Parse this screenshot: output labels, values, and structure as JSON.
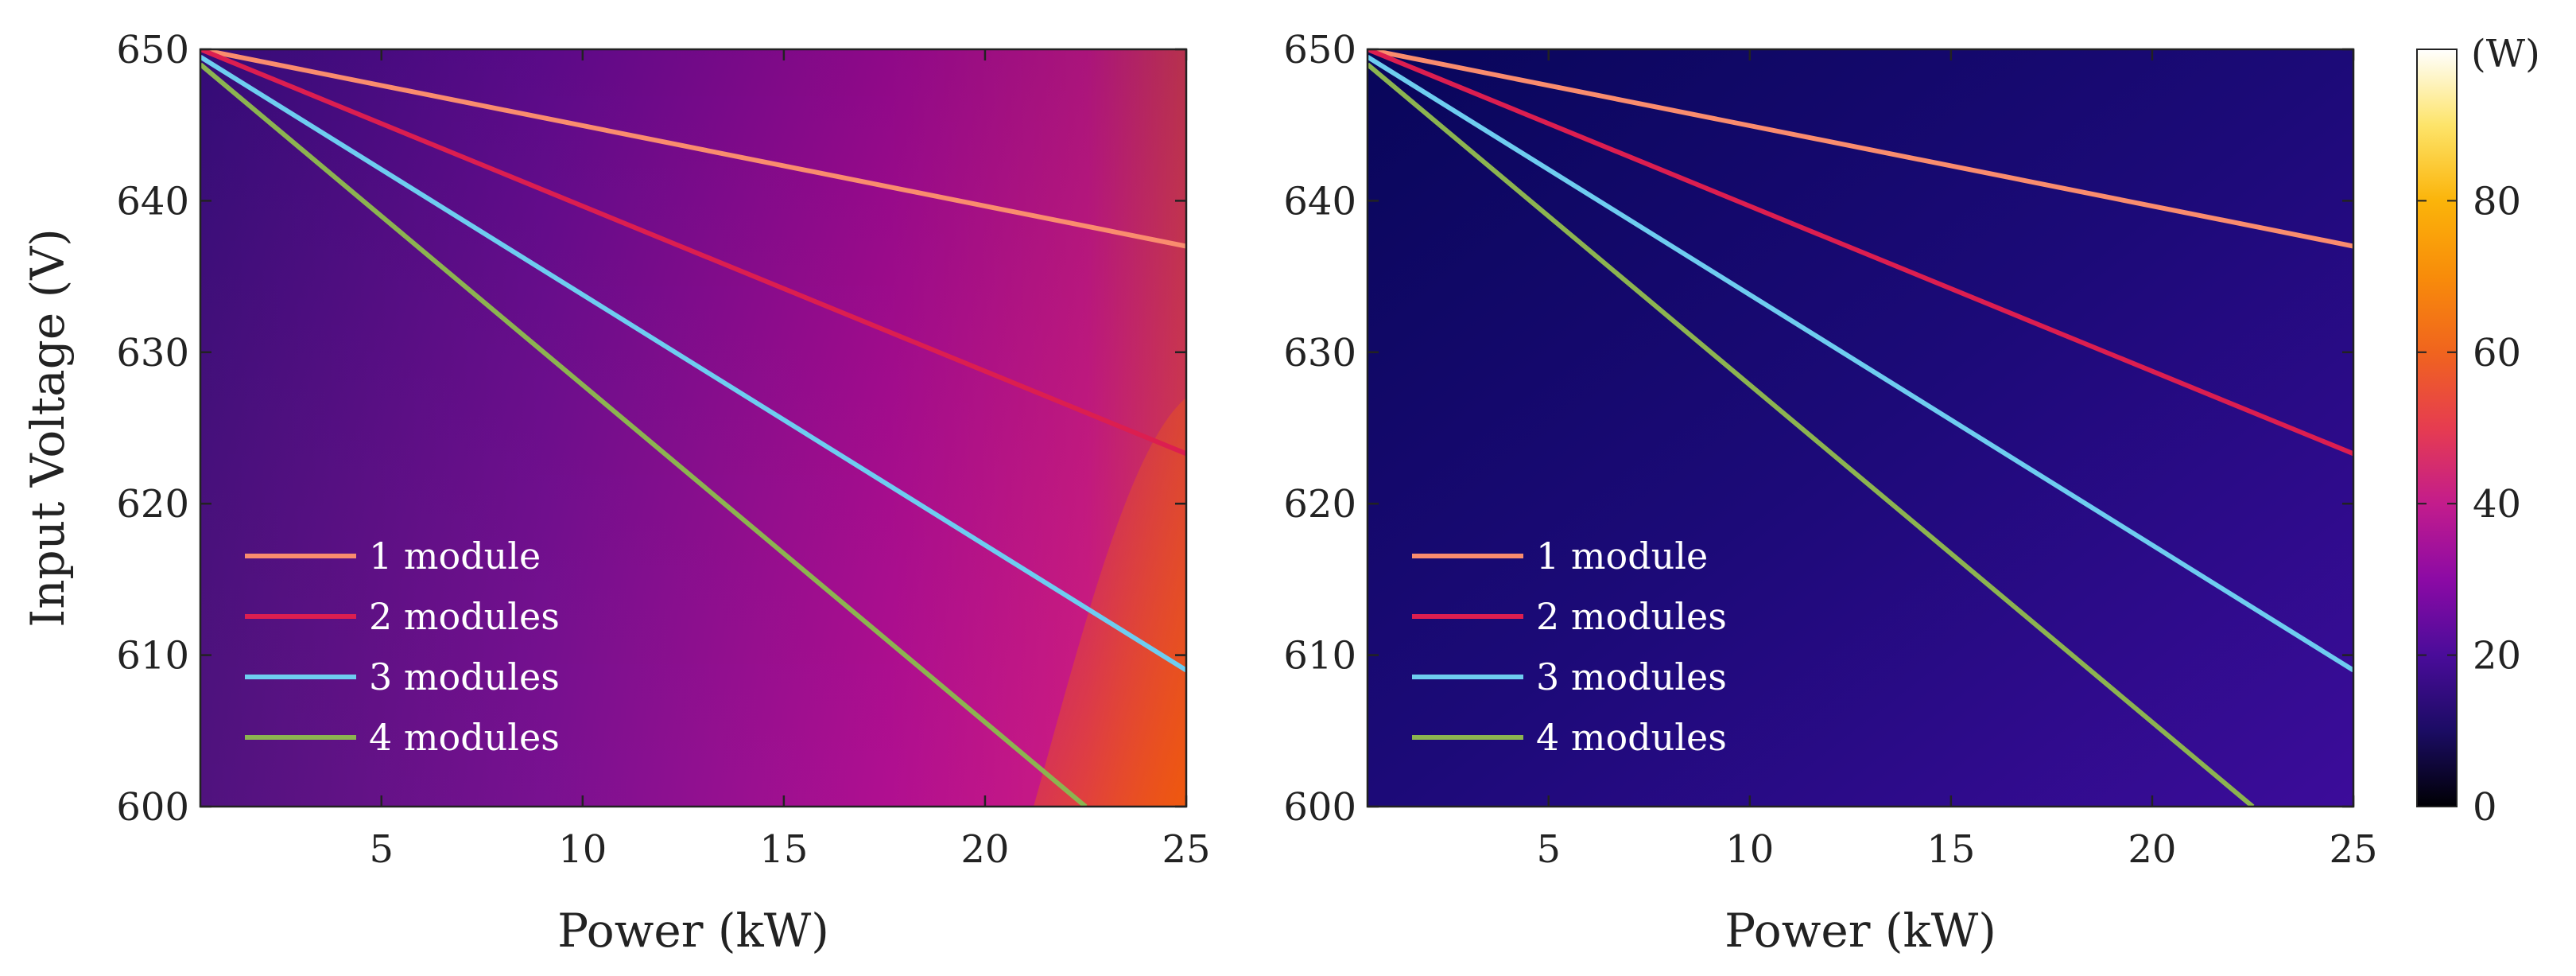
{
  "colors": {
    "series": [
      "#fa8c6e",
      "#dc1e50",
      "#6ecdf0",
      "#8cb450"
    ],
    "colormap": [
      "#000004",
      "#1b0c41",
      "#4a0c6b",
      "#781c6d",
      "#a52c60",
      "#cf4446",
      "#ed6925",
      "#fb9b06",
      "#f7d13d",
      "#fcffa4",
      "#ffffff"
    ]
  },
  "chart_data": [
    {
      "type": "heatmap",
      "panel": "left",
      "xlabel": "Power (kW)",
      "ylabel": "Input Voltage (V)",
      "xlim": [
        0.5,
        25
      ],
      "ylim": [
        600,
        650
      ],
      "xticks": [
        5,
        10,
        15,
        20,
        25
      ],
      "yticks": [
        600,
        610,
        620,
        630,
        640,
        650
      ],
      "heat": {
        "low_value_W": 20,
        "high_value_W": 52,
        "description": "losses grow with power, highest at 25 kW / 600 V"
      },
      "series": [
        {
          "name": "1 module",
          "x": [
            0.5,
            25
          ],
          "y": [
            650,
            637
          ]
        },
        {
          "name": "2 modules",
          "x": [
            0.5,
            25
          ],
          "y": [
            650,
            623.3
          ]
        },
        {
          "name": "3 modules",
          "x": [
            0.5,
            25
          ],
          "y": [
            649.5,
            609
          ]
        },
        {
          "name": "4 modules",
          "x": [
            0.5,
            22.5
          ],
          "y": [
            649,
            600
          ]
        }
      ],
      "legend": [
        "1 module",
        "2 modules",
        "3 modules",
        "4 modules"
      ],
      "legend_position": "bottom-left"
    },
    {
      "type": "heatmap",
      "panel": "right",
      "xlabel": "Power (kW)",
      "ylabel": "",
      "xlim": [
        0.5,
        25
      ],
      "ylim": [
        600,
        650
      ],
      "xticks": [
        5,
        10,
        15,
        20,
        25
      ],
      "yticks": [
        600,
        610,
        620,
        630,
        640,
        650
      ],
      "heat": {
        "low_value_W": 6,
        "high_value_W": 18,
        "description": "lower losses across full range"
      },
      "series": [
        {
          "name": "1 module",
          "x": [
            0.5,
            25
          ],
          "y": [
            650,
            637
          ]
        },
        {
          "name": "2 modules",
          "x": [
            0.5,
            25
          ],
          "y": [
            650,
            623.3
          ]
        },
        {
          "name": "3 modules",
          "x": [
            0.5,
            25
          ],
          "y": [
            649.5,
            609
          ]
        },
        {
          "name": "4 modules",
          "x": [
            0.5,
            22.5
          ],
          "y": [
            649,
            600
          ]
        }
      ],
      "legend": [
        "1 module",
        "2 modules",
        "3 modules",
        "4 modules"
      ],
      "legend_position": "bottom-left"
    }
  ],
  "colorbar": {
    "unit_label": "(W)",
    "range": [
      0,
      100
    ],
    "ticks": [
      0,
      20,
      40,
      60,
      80
    ]
  }
}
